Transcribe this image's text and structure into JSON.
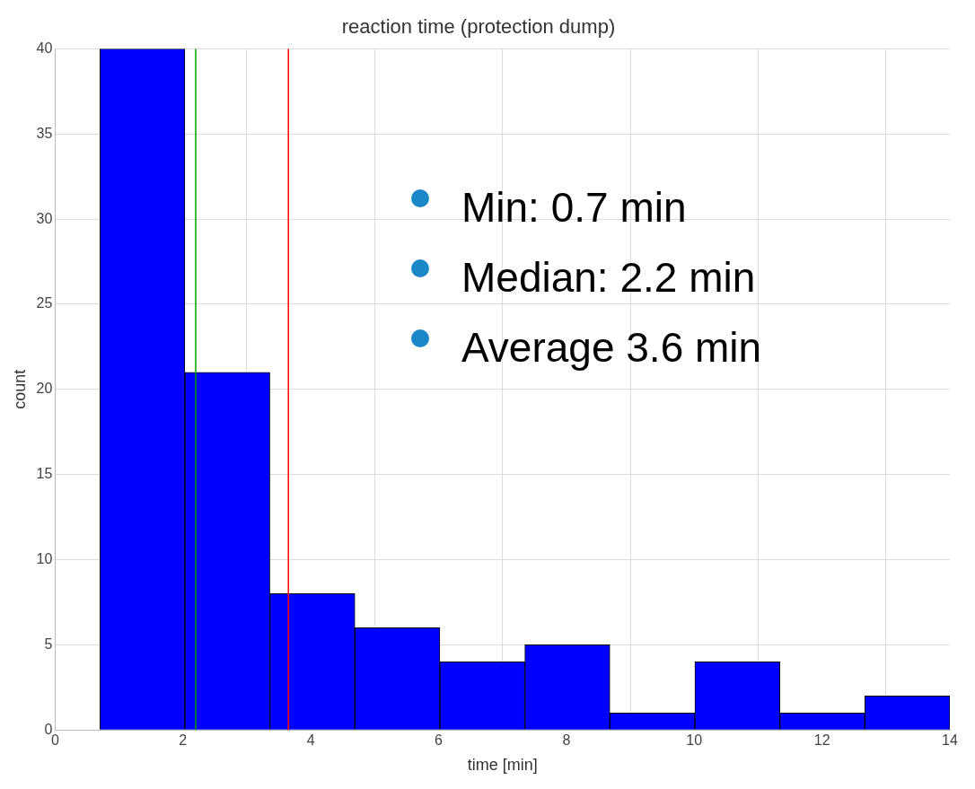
{
  "chart_data": {
    "type": "histogram",
    "title": "reaction time (protection dump)",
    "xlabel": "time [min]",
    "ylabel": "count",
    "bins": [
      0.7,
      2.03,
      3.36,
      4.69,
      6.02,
      7.35,
      8.68,
      10.01,
      11.34,
      12.67,
      14.0
    ],
    "values": [
      40,
      21,
      8,
      6,
      4,
      5,
      1,
      4,
      1,
      2
    ],
    "color": "#0000ff",
    "xlim": [
      0,
      14
    ],
    "xticks": [
      0,
      2,
      4,
      6,
      8,
      10,
      12,
      14
    ],
    "ylim": [
      0,
      40
    ],
    "yticks": [
      0,
      5,
      10,
      15,
      20,
      25,
      30,
      35,
      40
    ],
    "grid": true,
    "ref_lines": [
      {
        "axis": "x",
        "value": 2.2,
        "color": "#00a000"
      },
      {
        "axis": "x",
        "value": 3.65,
        "color": "#ff0000"
      }
    ],
    "annotations": [
      "Min: 0.7 min",
      "Median: 2.2 min",
      "Average 3.6 min"
    ]
  }
}
